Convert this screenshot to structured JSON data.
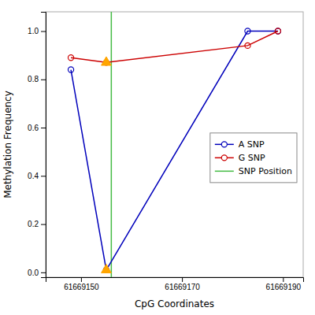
{
  "chart_data": {
    "type": "line",
    "xlabel": "CpG Coordinates",
    "ylabel": "Methylation Frequency",
    "x": [
      61669148,
      61669155,
      61669183,
      61669189
    ],
    "series": [
      {
        "name": "A SNP",
        "color": "#0000bb",
        "marker": "circle",
        "values": [
          0.84,
          0.01,
          1.0,
          1.0
        ]
      },
      {
        "name": "G SNP",
        "color": "#cc0000",
        "marker": "circle",
        "values": [
          0.89,
          0.87,
          0.94,
          1.0
        ]
      }
    ],
    "annotations": [
      {
        "type": "vline",
        "name": "SNP Position",
        "color": "#44bb44",
        "x": 61669156
      },
      {
        "type": "point",
        "marker": "triangle",
        "color": "#FFA500",
        "x": 61669155,
        "y": 0.01
      },
      {
        "type": "point",
        "marker": "triangle",
        "color": "#FFA500",
        "x": 61669155,
        "y": 0.87
      }
    ],
    "xlim": [
      61669143,
      61669194
    ],
    "ylim": [
      -0.02,
      1.08
    ],
    "xticks": [
      61669150,
      61669170,
      61669190
    ],
    "yticks": [
      {
        "value": 0.0,
        "label": "0.0"
      },
      0.2,
      0.4,
      0.6,
      0.8,
      {
        "value": 1.0,
        "label": "1.0"
      }
    ],
    "grid": false,
    "legend": "right"
  }
}
